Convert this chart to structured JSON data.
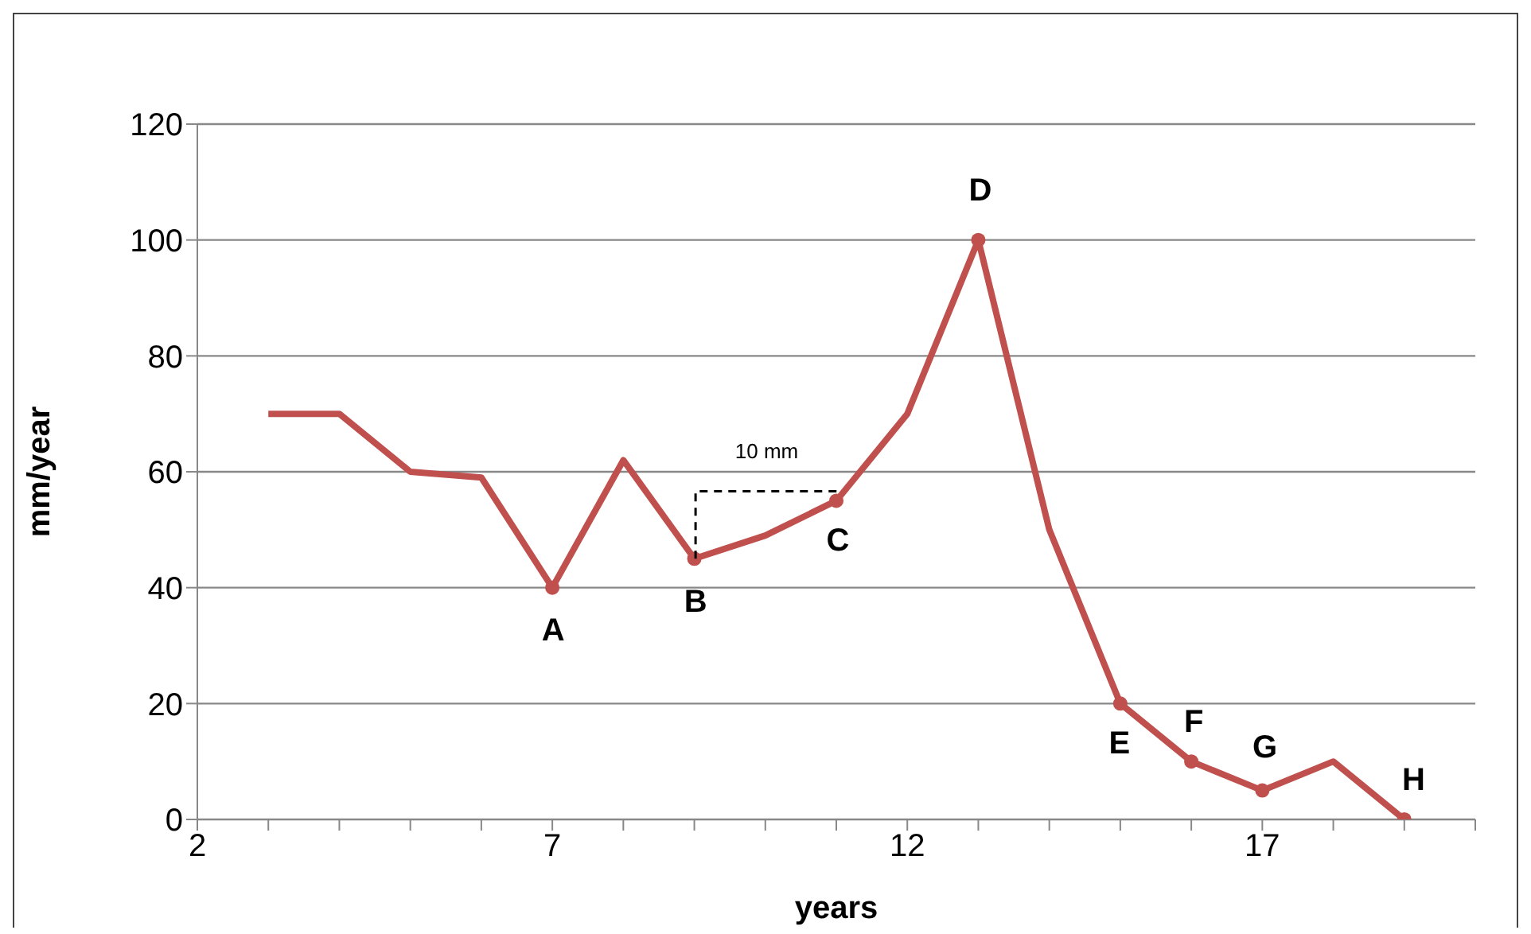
{
  "chart_data": {
    "type": "line",
    "xlabel": "years",
    "ylabel": "mm/year",
    "xlim": [
      2,
      20
    ],
    "xticks": [
      2,
      {
        "value": 3,
        "label": null
      },
      {
        "value": 4,
        "label": null
      },
      {
        "value": 5,
        "label": null
      },
      {
        "value": 6,
        "label": null
      },
      7,
      {
        "value": 8,
        "label": null
      },
      {
        "value": 9,
        "label": null
      },
      {
        "value": 10,
        "label": null
      },
      {
        "value": 11,
        "label": null
      },
      12,
      {
        "value": 13,
        "label": null
      },
      {
        "value": 14,
        "label": null
      },
      {
        "value": 15,
        "label": null
      },
      {
        "value": 16,
        "label": null
      },
      17,
      {
        "value": 18,
        "label": null
      },
      {
        "value": 19,
        "label": null
      },
      {
        "value": 20,
        "label": null
      }
    ],
    "ylim": [
      0,
      120
    ],
    "yticks": [
      0,
      20,
      40,
      60,
      80,
      100,
      120
    ],
    "grid": "y",
    "series": [
      {
        "color": "#c0504d",
        "marker": "none",
        "x": [
          3,
          4,
          5,
          6,
          7,
          8,
          9,
          10,
          11,
          12,
          13,
          14,
          15,
          16,
          17,
          18,
          19
        ],
        "values": [
          70,
          70,
          60,
          59,
          40,
          62,
          45,
          49,
          55,
          70,
          100,
          50,
          20,
          10,
          5,
          10,
          0
        ]
      },
      {
        "type": "scatter",
        "color": "#c0504d",
        "marker": "circle",
        "x": [
          7,
          9,
          11,
          13,
          15,
          16,
          17,
          19
        ],
        "values": [
          40,
          45,
          55,
          100,
          20,
          10,
          5,
          0
        ]
      }
    ],
    "annotations": [
      {
        "text": "A",
        "x": 7,
        "y": 40
      },
      {
        "text": "B",
        "x": 9,
        "y": 45
      },
      {
        "text": "C",
        "x": 11,
        "y": 55
      },
      {
        "text": "D",
        "x": 13,
        "y": 100
      },
      {
        "text": "E",
        "x": 15,
        "y": 20
      },
      {
        "text": "F",
        "x": 16,
        "y": 10
      },
      {
        "text": "G",
        "x": 17,
        "y": 5
      },
      {
        "text": "H",
        "x": 19,
        "y": 0
      },
      "10 mm"
    ]
  }
}
